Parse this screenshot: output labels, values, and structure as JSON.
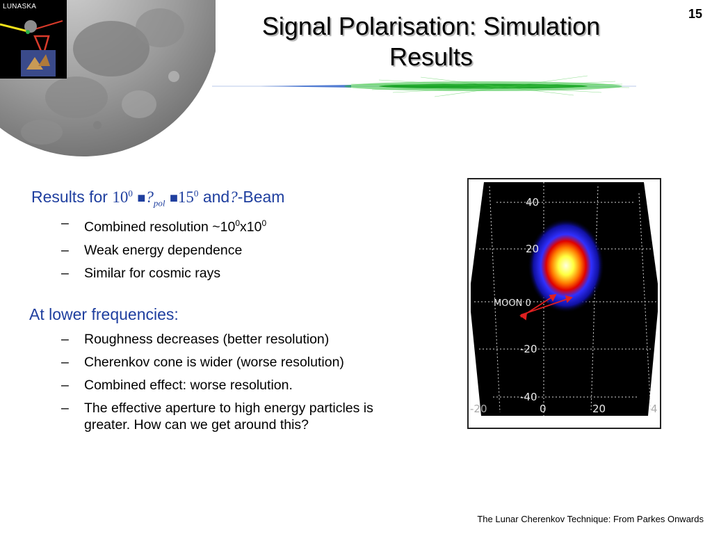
{
  "header": {
    "logo_label": "LUNASKA",
    "title_line1": "Signal Polarisation: Simulation",
    "title_line2": "Results",
    "slide_number": "15"
  },
  "section1": {
    "prefix": "Results for",
    "lower_value": "10",
    "lower_exp": "0",
    "symbol": "?",
    "subscript": "pol",
    "upper_value": "15",
    "upper_exp": "0",
    "conj": "and",
    "symbol2": "?",
    "suffix": "-Beam",
    "items": [
      {
        "text": "Combined resolution ~10",
        "sup1": "0",
        "mid": "x10",
        "sup2": "0"
      },
      {
        "text": "Weak energy dependence"
      },
      {
        "text": "Similar for cosmic rays"
      }
    ]
  },
  "section2": {
    "heading": "At lower frequencies:",
    "items": [
      "Roughness decreases (better resolution)",
      "Cherenkov cone is wider (worse resolution)",
      "Combined effect: worse resolution.",
      "The effective aperture to high energy particles is greater. How can we get around this?"
    ]
  },
  "skymap": {
    "y_ticks": [
      "40",
      "20",
      "MOON 0",
      "-20",
      "-40"
    ],
    "x_ticks": [
      "-20",
      "0",
      "20",
      "4"
    ]
  },
  "footer": {
    "text": "The Lunar Cherenkov Technique: From Parkes Onwards"
  },
  "colors": {
    "heading": "#1f3f9f",
    "streak": "#22aa22"
  }
}
